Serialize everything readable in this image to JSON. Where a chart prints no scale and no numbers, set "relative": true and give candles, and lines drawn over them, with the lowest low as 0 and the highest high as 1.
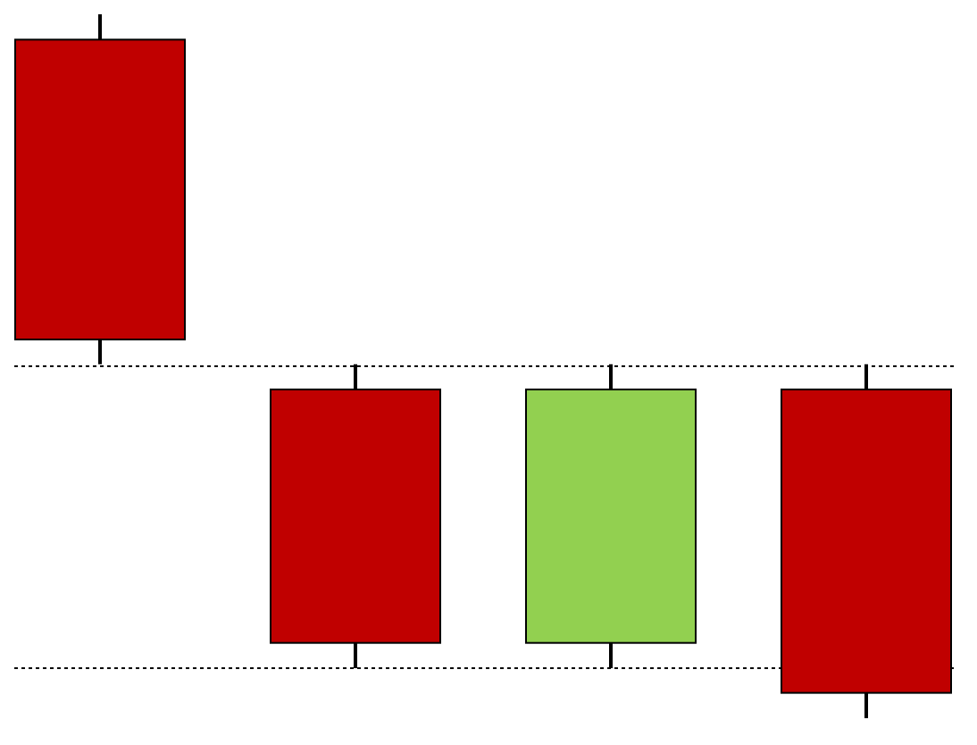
{
  "chart_data": {
    "type": "candlestick",
    "relative": true,
    "categories": [
      null,
      null,
      null,
      null
    ],
    "ohlc": [
      [
        0.964,
        1,
        0.503,
        0.538
      ],
      [
        0.467,
        0.503,
        0.071,
        0.107
      ],
      [
        0.107,
        0.503,
        0.071,
        0.467
      ],
      [
        0.467,
        0.503,
        0,
        0.036
      ]
    ],
    "colors": [
      "#c00000",
      "#c00000",
      "#92d050",
      "#c00000"
    ],
    "ref_lines": [
      {
        "axis": "y",
        "value": 0.5,
        "color": "#000000",
        "line_style": "dotted"
      },
      {
        "axis": "y",
        "value": 0.071,
        "color": "#000000",
        "line_style": "dotted"
      }
    ]
  }
}
